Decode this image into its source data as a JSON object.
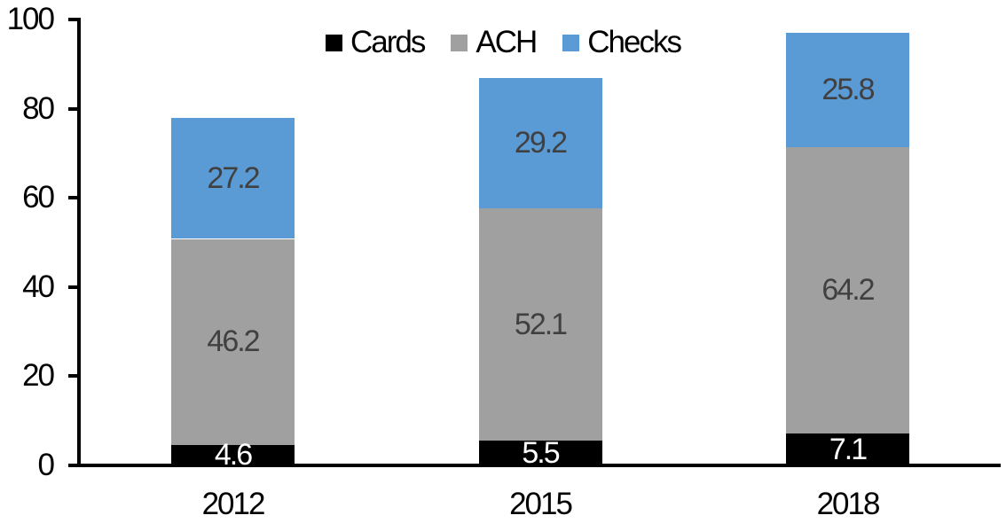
{
  "chart_data": {
    "type": "bar",
    "stacked": true,
    "categories": [
      "2012",
      "2015",
      "2018"
    ],
    "series": [
      {
        "name": "Cards",
        "color": "#000000",
        "label_color": "#ffffff",
        "values": [
          4.6,
          5.5,
          7.1
        ]
      },
      {
        "name": "ACH",
        "color": "#a0a0a0",
        "label_color": "#404040",
        "values": [
          46.2,
          52.1,
          64.2
        ]
      },
      {
        "name": "Checks",
        "color": "#5b9bd5",
        "label_color": "#404040",
        "values": [
          27.2,
          29.2,
          25.8
        ]
      }
    ],
    "totals": [
      78.0,
      86.8,
      97.1
    ],
    "title": "",
    "xlabel": "",
    "ylabel": "",
    "y_axis": {
      "min": 0,
      "max": 100,
      "ticks": [
        0,
        20,
        40,
        60,
        80,
        100
      ]
    },
    "legend": {
      "position": "top",
      "entries": [
        "Cards",
        "ACH",
        "Checks"
      ]
    },
    "grid": false,
    "axis_color": "#000000",
    "data_label_decimals": 1
  }
}
